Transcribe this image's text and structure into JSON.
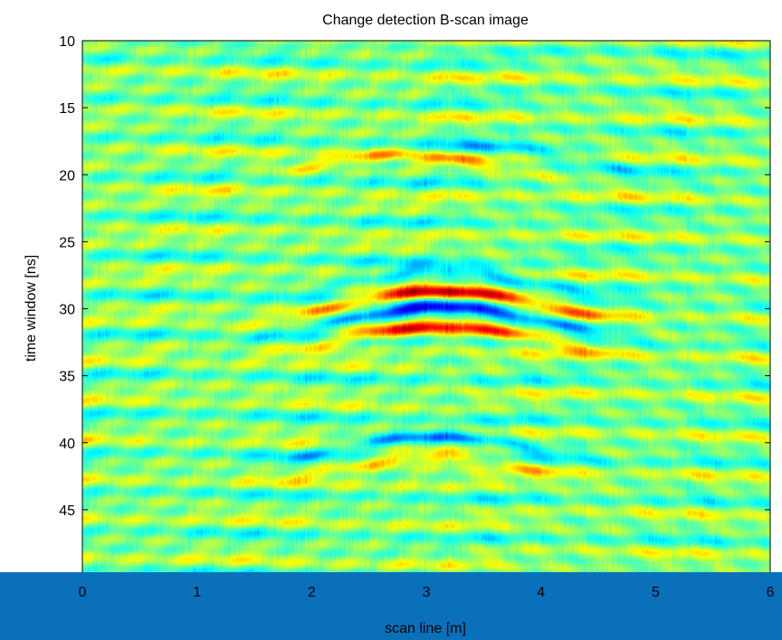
{
  "chart_data": {
    "type": "heatmap",
    "title": "Change detection B-scan image",
    "xlabel": "scan line [m]",
    "ylabel": "time window [ns]",
    "xlim": [
      0,
      6
    ],
    "ylim": [
      10,
      50
    ],
    "y_reversed": true,
    "x_ticks": [
      "0",
      "1",
      "2",
      "3",
      "4",
      "5",
      "6"
    ],
    "y_ticks": [
      "10",
      "15",
      "20",
      "25",
      "30",
      "35",
      "40",
      "45"
    ],
    "colormap": "jet",
    "grid": false,
    "features": [
      {
        "kind": "hyperbola",
        "apex_x": 3.15,
        "apex_y": 28.7,
        "strength": 1.0
      },
      {
        "kind": "hyperbola",
        "apex_x": 3.15,
        "apex_y": 29.9,
        "strength": -0.95
      },
      {
        "kind": "hyperbola",
        "apex_x": 3.15,
        "apex_y": 31.3,
        "strength": 0.85
      },
      {
        "kind": "hyperbola",
        "apex_x": 3.15,
        "apex_y": 27.2,
        "strength": -0.5
      },
      {
        "kind": "hyperbola",
        "apex_x": 3.1,
        "apex_y": 39.5,
        "strength": -0.55
      },
      {
        "kind": "hyperbola",
        "apex_x": 3.1,
        "apex_y": 41.0,
        "strength": 0.45
      },
      {
        "kind": "hyperbola",
        "apex_x": 2.8,
        "apex_y": 18.5,
        "strength": 0.45
      },
      {
        "kind": "hyperbola",
        "apex_x": 3.55,
        "apex_y": 18.0,
        "strength": -0.35
      }
    ]
  },
  "colors": {
    "background": "#ffffff",
    "footer_band": "#0a70ba",
    "axis": "#000000"
  }
}
